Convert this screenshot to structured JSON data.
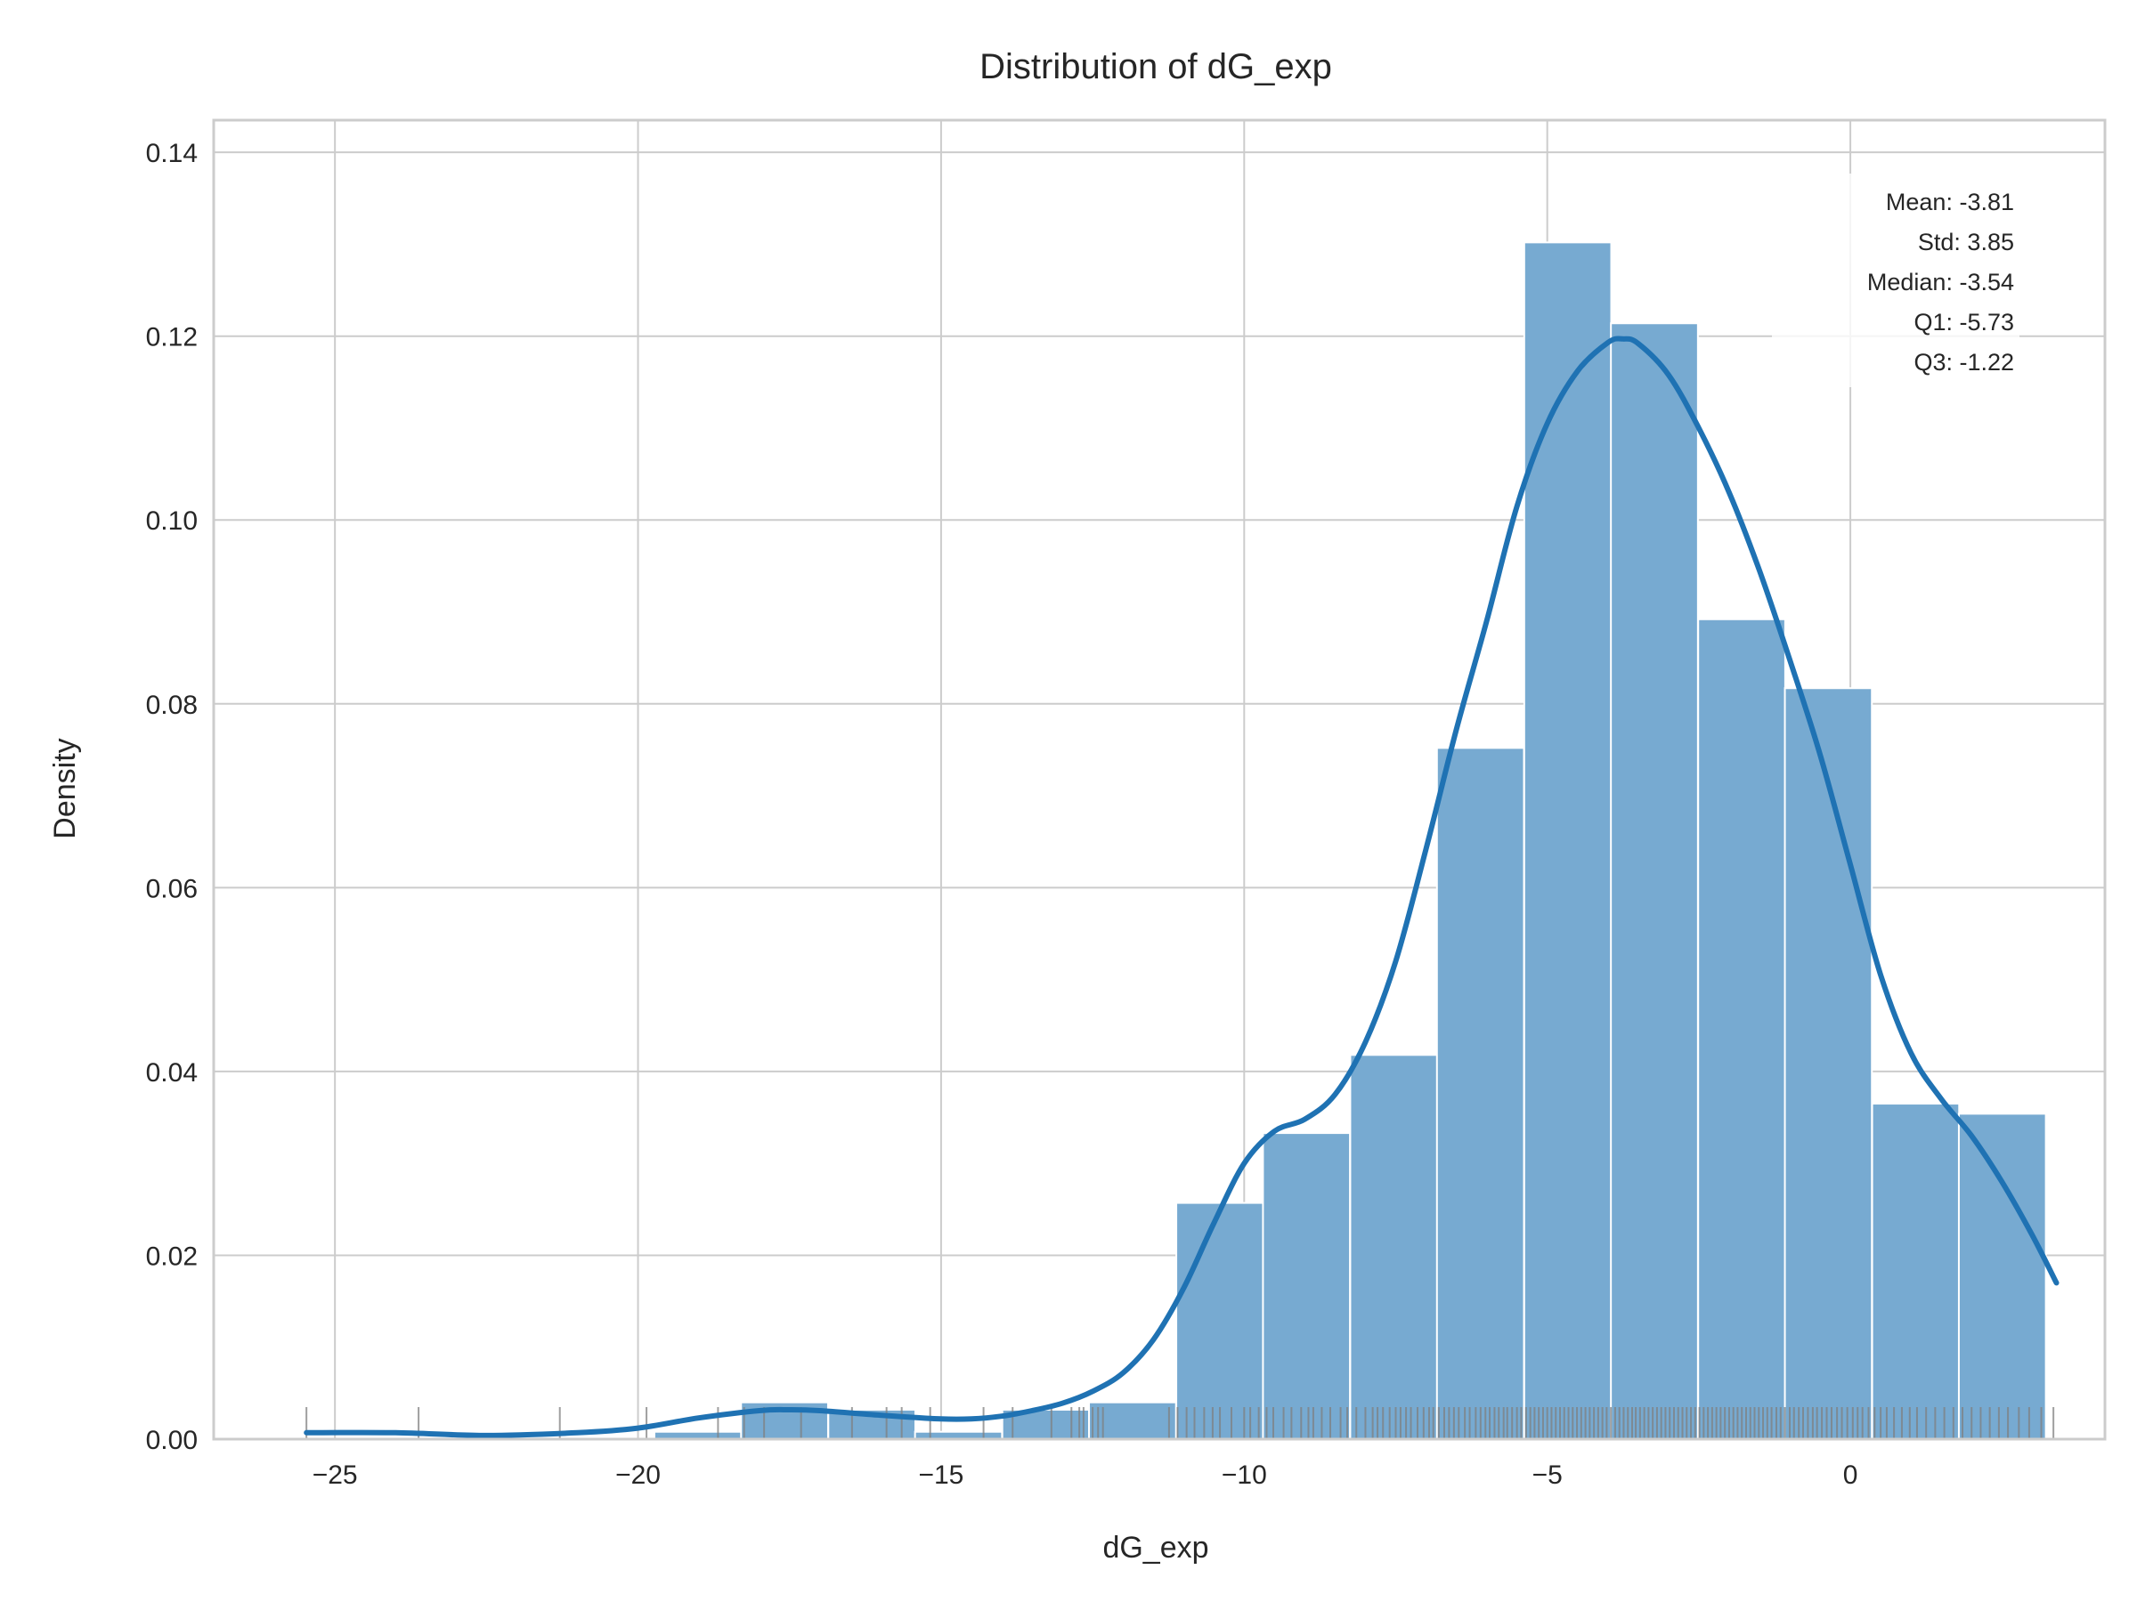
{
  "chart_data": {
    "type": "bar",
    "title": "Distribution of dG_exp",
    "xlabel": "dG_exp",
    "ylabel": "Density",
    "xlim": [
      -27.0,
      4.2
    ],
    "ylim": [
      0,
      0.1435
    ],
    "x_ticks": [
      -25,
      -20,
      -15,
      -10,
      -5,
      0
    ],
    "x_tick_labels": [
      "−25",
      "−20",
      "−15",
      "−10",
      "−5",
      "0"
    ],
    "y_ticks": [
      0,
      0.02,
      0.04,
      0.06,
      0.08,
      0.1,
      0.12,
      0.14
    ],
    "y_tick_labels": [
      "0.00",
      "0.02",
      "0.04",
      "0.06",
      "0.08",
      "0.10",
      "0.12",
      "0.14"
    ],
    "grid": true,
    "bin_width": 1.435,
    "histogram": [
      {
        "x0": -25.47,
        "density": 0.0
      },
      {
        "x0": -24.04,
        "density": 0.0
      },
      {
        "x0": -22.6,
        "density": 0.0
      },
      {
        "x0": -21.17,
        "density": 0.0
      },
      {
        "x0": -19.73,
        "density": 0.0008
      },
      {
        "x0": -18.3,
        "density": 0.004
      },
      {
        "x0": -16.86,
        "density": 0.0032
      },
      {
        "x0": -15.43,
        "density": 0.0008
      },
      {
        "x0": -13.99,
        "density": 0.0032
      },
      {
        "x0": -12.56,
        "density": 0.004
      },
      {
        "x0": -11.12,
        "density": 0.0257
      },
      {
        "x0": -9.69,
        "density": 0.0333
      },
      {
        "x0": -8.25,
        "density": 0.0418
      },
      {
        "x0": -6.82,
        "density": 0.0752
      },
      {
        "x0": -5.38,
        "density": 0.1302
      },
      {
        "x0": -3.95,
        "density": 0.1214
      },
      {
        "x0": -2.51,
        "density": 0.0892
      },
      {
        "x0": -1.08,
        "density": 0.0817
      },
      {
        "x0": 0.36,
        "density": 0.0365
      },
      {
        "x0": 1.79,
        "density": 0.0354
      }
    ],
    "kde": {
      "x": [
        -25.47,
        -24.0,
        -22.5,
        -21.0,
        -20.0,
        -19.0,
        -18.0,
        -17.5,
        -17.0,
        -16.0,
        -15.0,
        -14.5,
        -14.0,
        -13.5,
        -13.0,
        -12.5,
        -12.0,
        -11.5,
        -11.0,
        -10.5,
        -10.0,
        -9.5,
        -9.0,
        -8.5,
        -8.0,
        -7.5,
        -7.0,
        -6.5,
        -6.0,
        -5.5,
        -5.0,
        -4.5,
        -4.0,
        -3.75,
        -3.5,
        -3.0,
        -2.5,
        -2.0,
        -1.5,
        -1.0,
        -0.5,
        0.0,
        0.5,
        1.0,
        1.5,
        2.0,
        2.5,
        3.0,
        3.4
      ],
      "y": [
        0.0007,
        0.0007,
        0.0004,
        0.0007,
        0.0012,
        0.0023,
        0.0031,
        0.0032,
        0.0031,
        0.0026,
        0.0022,
        0.0022,
        0.0025,
        0.0031,
        0.0039,
        0.0052,
        0.0072,
        0.0108,
        0.0164,
        0.0235,
        0.03,
        0.0335,
        0.0348,
        0.0375,
        0.0432,
        0.052,
        0.0642,
        0.0772,
        0.089,
        0.1015,
        0.1105,
        0.1162,
        0.1193,
        0.1197,
        0.1192,
        0.1158,
        0.11,
        0.103,
        0.0945,
        0.0848,
        0.0745,
        0.0625,
        0.0505,
        0.042,
        0.037,
        0.033,
        0.028,
        0.0222,
        0.017
      ]
    },
    "rug": [
      -25.47,
      -23.62,
      -21.29,
      -19.86,
      -18.68,
      -18.25,
      -17.92,
      -17.31,
      -16.47,
      -15.9,
      -15.65,
      -15.18,
      -14.3,
      -13.82,
      -13.18,
      -12.85,
      -12.72,
      -12.65,
      -12.5,
      -12.41,
      -12.33,
      -11.24,
      -11.1,
      -10.95,
      -10.82,
      -10.66,
      -10.52,
      -10.4,
      -10.21,
      -10.0,
      -9.9,
      -9.76,
      -9.63,
      -9.52,
      -9.35,
      -9.22,
      -9.06,
      -8.94,
      -8.86,
      -8.72,
      -8.58,
      -8.41,
      -8.3,
      -8.15,
      -8.0,
      -7.88,
      -7.8,
      -7.71,
      -7.6,
      -7.5,
      -7.42,
      -7.33,
      -7.25,
      -7.14,
      -7.04,
      -6.95,
      -6.88,
      -6.79,
      -6.7,
      -6.62,
      -6.54,
      -6.46,
      -6.36,
      -6.28,
      -6.18,
      -6.1,
      -6.02,
      -5.95,
      -5.87,
      -5.8,
      -5.72,
      -5.66,
      -5.58,
      -5.5,
      -5.43,
      -5.35,
      -5.28,
      -5.21,
      -5.14,
      -5.07,
      -5.0,
      -4.93,
      -4.86,
      -4.79,
      -4.72,
      -4.65,
      -4.58,
      -4.51,
      -4.44,
      -4.37,
      -4.3,
      -4.23,
      -4.16,
      -4.09,
      -4.02,
      -3.95,
      -3.88,
      -3.81,
      -3.74,
      -3.67,
      -3.6,
      -3.54,
      -3.47,
      -3.4,
      -3.33,
      -3.26,
      -3.19,
      -3.12,
      -3.05,
      -2.98,
      -2.91,
      -2.84,
      -2.77,
      -2.7,
      -2.63,
      -2.56,
      -2.49,
      -2.42,
      -2.35,
      -2.28,
      -2.21,
      -2.14,
      -2.07,
      -2.0,
      -1.93,
      -1.86,
      -1.79,
      -1.72,
      -1.65,
      -1.58,
      -1.51,
      -1.44,
      -1.37,
      -1.3,
      -1.22,
      -1.15,
      -1.08,
      -1.0,
      -0.93,
      -0.85,
      -0.78,
      -0.7,
      -0.62,
      -0.55,
      -0.47,
      -0.39,
      -0.31,
      -0.22,
      -0.14,
      -0.05,
      0.04,
      0.12,
      0.2,
      0.3,
      0.4,
      0.5,
      0.6,
      0.72,
      0.85,
      0.98,
      1.1,
      1.25,
      1.4,
      1.55,
      1.7,
      1.85,
      2.0,
      2.15,
      2.3,
      2.45,
      2.6,
      2.78,
      2.95,
      3.15,
      3.35
    ],
    "stats": [
      "Mean: -3.81",
      "Std: 3.85",
      "Median: -3.54",
      "Q1: -5.73",
      "Q3: -1.22"
    ],
    "colors": {
      "bar": "#77aad1",
      "bar_edge": "#ffffff",
      "kde": "#1f72b3",
      "rug": "#7f7f7f",
      "grid": "#cccccc",
      "frame": "#cccccc"
    }
  }
}
